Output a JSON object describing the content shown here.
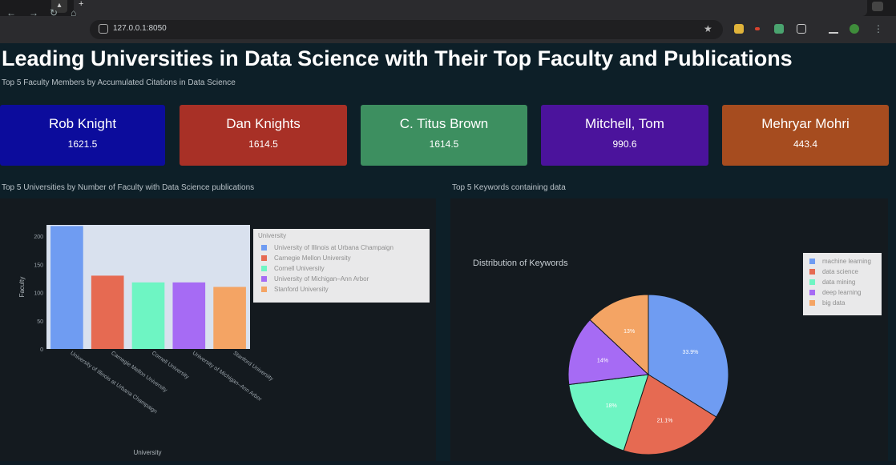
{
  "browser": {
    "url": "127.0.0.1:8050",
    "new_tab_glyph": "+"
  },
  "page": {
    "title": "Leading Universities in Data Science with Their Top Faculty and Publications",
    "subtitle": "Top 5 Faculty Members by Accumulated Citations in Data Science",
    "faculty_cards": [
      {
        "name": "Rob Knight",
        "value": "1621.5",
        "color": "#0c0c9c"
      },
      {
        "name": "Dan Knights",
        "value": "1614.5",
        "color": "#a83026"
      },
      {
        "name": "C. Titus Brown",
        "value": "1614.5",
        "color": "#3d8f60"
      },
      {
        "name": "Mitchell, Tom",
        "value": "990.6",
        "color": "#4b139c"
      },
      {
        "name": "Mehryar Mohri",
        "value": "443.4",
        "color": "#a64c1f"
      }
    ],
    "bar_section_label": "Top 5 Universities by Number of Faculty with Data Science publications",
    "pie_section_label": "Top 5 Keywords containing data"
  },
  "chart_data": [
    {
      "type": "bar",
      "title": "",
      "xlabel": "University",
      "ylabel": "Faculty",
      "ylim": [
        0,
        220
      ],
      "yticks": [
        0,
        50,
        100,
        150,
        200
      ],
      "legend_title": "University",
      "legend_placement": "right",
      "grid": false,
      "categories": [
        "University of Illinois at Urbana Champaign",
        "Carnegie Mellon University",
        "Cornell University",
        "University of Michigan–Ann Arbor",
        "Stanford University"
      ],
      "tick_labels": [
        "University of Illinois at Urbana Champaign",
        "Carnegie Mellon University",
        "Cornell University",
        "University of Michigan–Ann Arbor",
        "Stanford University"
      ],
      "values": [
        218,
        130,
        118,
        118,
        110
      ],
      "colors": [
        "#6f9cf2",
        "#e66a52",
        "#6ef5c3",
        "#a66bf4",
        "#f4a464"
      ]
    },
    {
      "type": "pie",
      "title": "Distribution of Keywords",
      "legend_placement": "right",
      "categories": [
        "machine learning",
        "data science",
        "data mining",
        "deep learning",
        "big data"
      ],
      "values": [
        33.9,
        21.1,
        18.0,
        14.0,
        13.0
      ],
      "labels": [
        "33.9%",
        "21.1%",
        "18%",
        "14%",
        "13%"
      ],
      "colors": [
        "#6f9cf2",
        "#e66a52",
        "#6ef5c3",
        "#a66bf4",
        "#f4a464"
      ]
    }
  ]
}
